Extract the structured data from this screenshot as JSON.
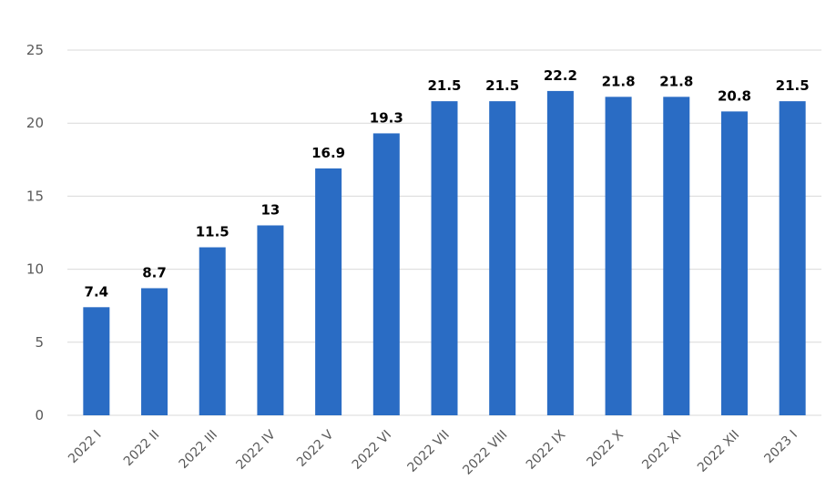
{
  "chart_data": {
    "type": "bar",
    "title": "",
    "xlabel": "",
    "ylabel": "",
    "categories": [
      "2022 I",
      "2022 II",
      "2022 III",
      "2022 IV",
      "2022 V",
      "2022 VI",
      "2022 VII",
      "2022 VIII",
      "2022 IX",
      "2022 X",
      "2022 XI",
      "2022 XII",
      "2023 I"
    ],
    "values": [
      7.4,
      8.7,
      11.5,
      13,
      16.9,
      19.3,
      21.5,
      21.5,
      22.2,
      21.8,
      21.8,
      20.8,
      21.5
    ],
    "data_labels": [
      "7.4",
      "8.7",
      "11.5",
      "13",
      "16.9",
      "19.3",
      "21.5",
      "21.5",
      "22.2",
      "21.8",
      "21.8",
      "20.8",
      "21.5"
    ],
    "ylim": [
      0,
      25
    ],
    "yticks": [
      "0",
      "5",
      "10",
      "15",
      "20",
      "25"
    ],
    "grid": true,
    "bar_color": "#2a6cc4",
    "grid_color": "#d9d9d9"
  }
}
